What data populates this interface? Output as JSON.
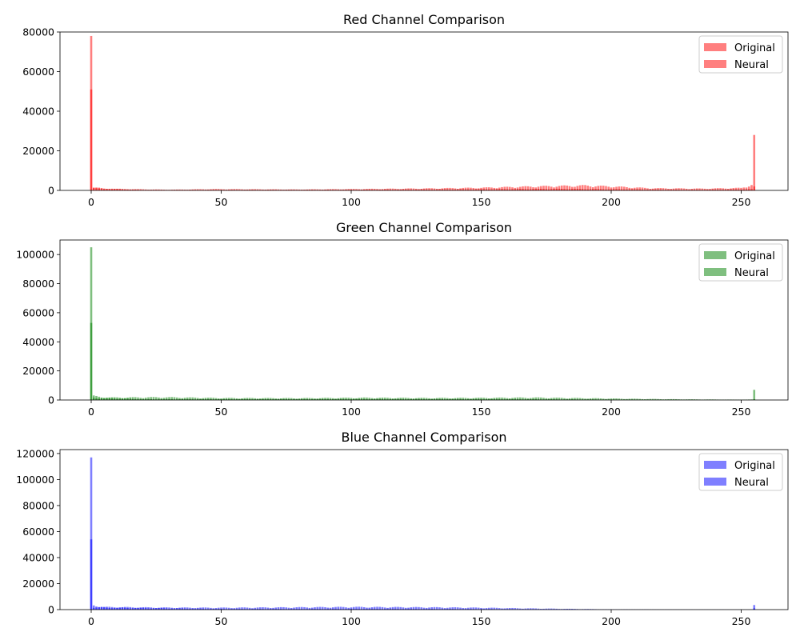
{
  "chart_data": [
    {
      "type": "bar",
      "title": "Red Channel Comparison",
      "xlabel": "",
      "ylabel": "",
      "xlim": [
        -12,
        268
      ],
      "ylim": [
        0,
        80000
      ],
      "yticks": [
        0,
        20000,
        40000,
        60000,
        80000
      ],
      "xticks": [
        0,
        50,
        100,
        150,
        200,
        250
      ],
      "color": "#ff0000",
      "legend_position": "top-right",
      "x": "pixel value 0-255",
      "series": [
        {
          "name": "Original",
          "peaks": [
            [
              0,
              78000
            ],
            [
              255,
              28000
            ]
          ],
          "baseline_anchors": [
            [
              1,
              1500
            ],
            [
              5,
              800
            ],
            [
              30,
              300
            ],
            [
              47,
              600
            ],
            [
              80,
              400
            ],
            [
              100,
              600
            ],
            [
              130,
              900
            ],
            [
              150,
              1200
            ],
            [
              170,
              1800
            ],
            [
              190,
              2200
            ],
            [
              200,
              1800
            ],
            [
              215,
              1000
            ],
            [
              235,
              800
            ],
            [
              250,
              1100
            ],
            [
              254,
              2500
            ]
          ]
        },
        {
          "name": "Neural",
          "peaks": [
            [
              0,
              51000
            ],
            [
              255,
              2000
            ]
          ],
          "baseline_anchors": [
            [
              1,
              1000
            ],
            [
              20,
              200
            ],
            [
              100,
              300
            ],
            [
              150,
              500
            ],
            [
              180,
              700
            ],
            [
              200,
              500
            ],
            [
              230,
              300
            ],
            [
              254,
              500
            ]
          ]
        }
      ]
    },
    {
      "type": "bar",
      "title": "Green Channel Comparison",
      "xlabel": "",
      "ylabel": "",
      "xlim": [
        -12,
        268
      ],
      "ylim": [
        0,
        110000
      ],
      "yticks": [
        0,
        20000,
        40000,
        60000,
        80000,
        100000
      ],
      "xticks": [
        0,
        50,
        100,
        150,
        200,
        250
      ],
      "color": "#008000",
      "legend_position": "top-right",
      "x": "pixel value 0-255",
      "series": [
        {
          "name": "Original",
          "peaks": [
            [
              0,
              105000
            ],
            [
              255,
              7000
            ]
          ],
          "baseline_anchors": [
            [
              1,
              2500
            ],
            [
              5,
              1500
            ],
            [
              28,
              1700
            ],
            [
              50,
              1200
            ],
            [
              80,
              1100
            ],
            [
              105,
              1400
            ],
            [
              130,
              1200
            ],
            [
              150,
              1300
            ],
            [
              170,
              1500
            ],
            [
              190,
              1100
            ],
            [
              210,
              700
            ],
            [
              230,
              400
            ],
            [
              250,
              200
            ],
            [
              254,
              300
            ]
          ]
        },
        {
          "name": "Neural",
          "peaks": [
            [
              0,
              53000
            ],
            [
              255,
              500
            ]
          ],
          "baseline_anchors": [
            [
              1,
              1500
            ],
            [
              20,
              500
            ],
            [
              100,
              600
            ],
            [
              150,
              600
            ],
            [
              200,
              300
            ],
            [
              254,
              100
            ]
          ]
        }
      ]
    },
    {
      "type": "bar",
      "title": "Blue Channel Comparison",
      "xlabel": "",
      "ylabel": "",
      "xlim": [
        -12,
        268
      ],
      "ylim": [
        0,
        123000
      ],
      "yticks": [
        0,
        20000,
        40000,
        60000,
        80000,
        100000,
        120000
      ],
      "xticks": [
        0,
        50,
        100,
        150,
        200,
        250
      ],
      "color": "#0000ff",
      "legend_position": "top-right",
      "x": "pixel value 0-255",
      "series": [
        {
          "name": "Original",
          "peaks": [
            [
              0,
              117000
            ],
            [
              255,
              3500
            ]
          ],
          "baseline_anchors": [
            [
              1,
              3000
            ],
            [
              5,
              1800
            ],
            [
              30,
              1400
            ],
            [
              50,
              1300
            ],
            [
              80,
              1600
            ],
            [
              100,
              1800
            ],
            [
              130,
              1600
            ],
            [
              150,
              1300
            ],
            [
              170,
              800
            ],
            [
              190,
              400
            ],
            [
              200,
              200
            ],
            [
              220,
              80
            ],
            [
              254,
              50
            ]
          ]
        },
        {
          "name": "Neural",
          "peaks": [
            [
              0,
              54000
            ],
            [
              255,
              1000
            ]
          ],
          "baseline_anchors": [
            [
              1,
              1500
            ],
            [
              50,
              500
            ],
            [
              120,
              600
            ],
            [
              160,
              300
            ],
            [
              200,
              80
            ],
            [
              254,
              20
            ]
          ]
        }
      ]
    }
  ]
}
